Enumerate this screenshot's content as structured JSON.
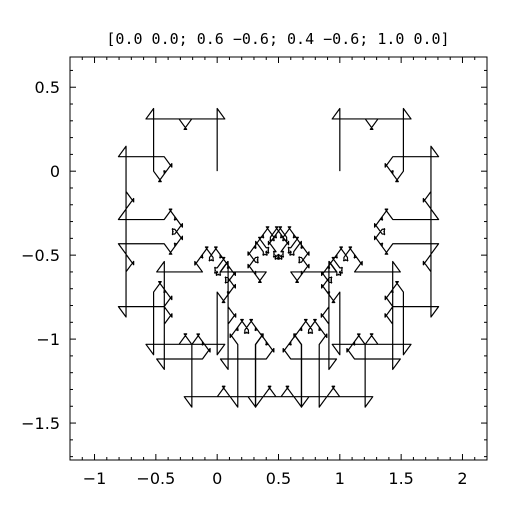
{
  "chart_data": {
    "type": "line",
    "title": "[0.0 0.0; 0.6 −0.6; 0.4 −0.6; 1.0 0.0]",
    "generator_points": [
      [
        0.0,
        0.0
      ],
      [
        0.6,
        -0.6
      ],
      [
        0.4,
        -0.6
      ],
      [
        1.0,
        0.0
      ]
    ],
    "fractal_depth": 6,
    "xlabel": "",
    "ylabel": "",
    "xlim": [
      -1.2,
      2.2
    ],
    "ylim": [
      -1.72,
      0.68
    ],
    "xticks": [
      {
        "value": -1,
        "label": "−1"
      },
      {
        "value": -0.5,
        "label": "−0.5"
      },
      {
        "value": 0,
        "label": "0"
      },
      {
        "value": 0.5,
        "label": "0.5"
      },
      {
        "value": 1,
        "label": "1"
      },
      {
        "value": 1.5,
        "label": "1.5"
      },
      {
        "value": 2,
        "label": "2"
      }
    ],
    "yticks": [
      {
        "value": 0.5,
        "label": "0.5"
      },
      {
        "value": 0,
        "label": "0"
      },
      {
        "value": -0.5,
        "label": "−0.5"
      },
      {
        "value": -1,
        "label": "−1"
      },
      {
        "value": -1.5,
        "label": "−1.5"
      }
    ],
    "grid": false,
    "line_color": "#000000"
  }
}
